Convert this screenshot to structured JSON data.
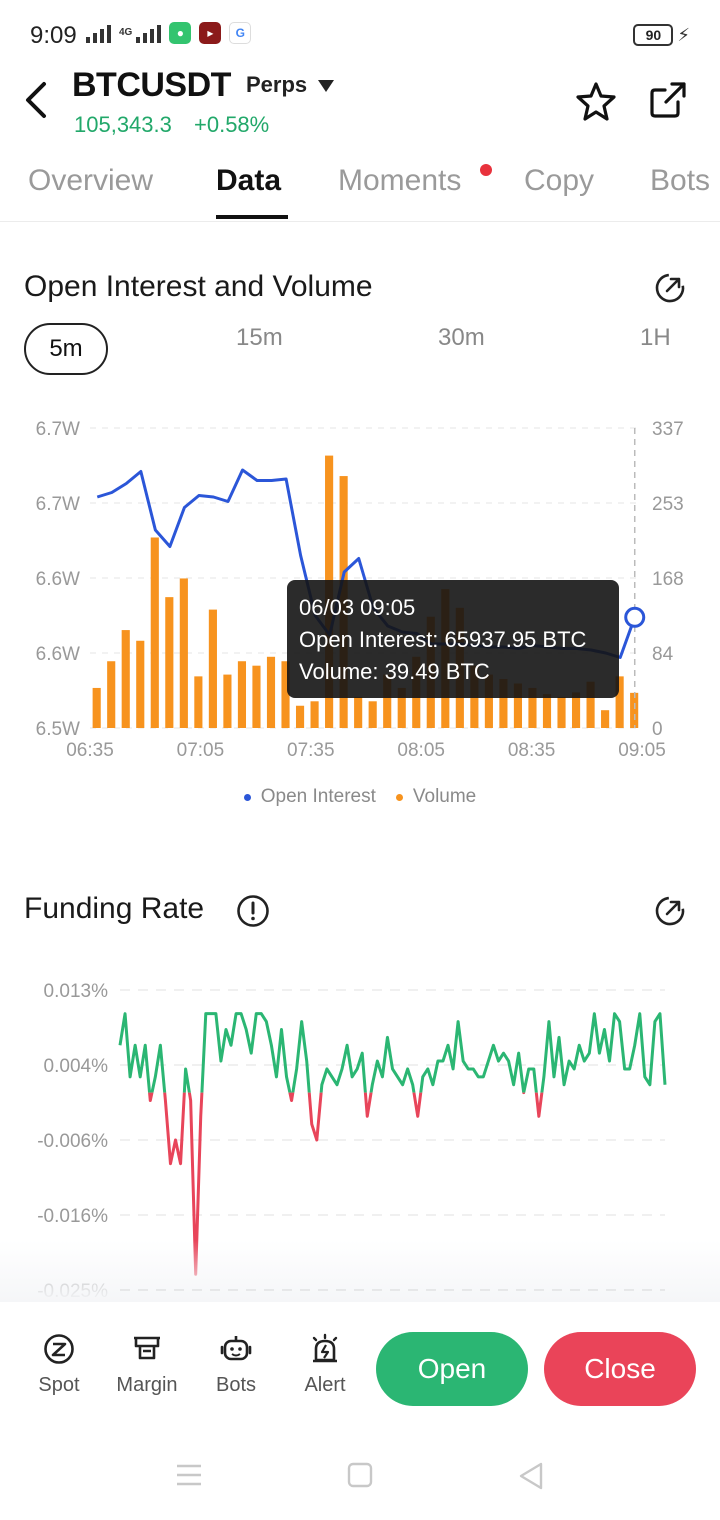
{
  "status_bar": {
    "time": "9:09",
    "network": "4G",
    "battery": "90"
  },
  "header": {
    "symbol": "BTCUSDT",
    "contract_type": "Perps",
    "price": "105,343.3",
    "change": "+0.58%"
  },
  "tabs": [
    {
      "label": "Overview",
      "active": false
    },
    {
      "label": "Data",
      "active": true
    },
    {
      "label": "Moments",
      "active": false,
      "notification": true
    },
    {
      "label": "Copy",
      "active": false
    },
    {
      "label": "Bots",
      "active": false
    }
  ],
  "open_interest_section": {
    "title": "Open Interest and Volume",
    "intervals": [
      "5m",
      "15m",
      "30m",
      "1H"
    ],
    "selected_interval": "5m",
    "tooltip": {
      "time": "06/03 09:05",
      "open_interest": "Open Interest: 65937.95 BTC",
      "volume": "Volume: 39.49 BTC"
    },
    "legend": {
      "open_interest": "Open Interest",
      "volume": "Volume"
    }
  },
  "funding_section": {
    "title": "Funding Rate"
  },
  "chart_data": [
    {
      "type": "bar",
      "title": "Open Interest and Volume",
      "x_ticks": [
        "06:35",
        "07:05",
        "07:35",
        "08:05",
        "08:35",
        "09:05"
      ],
      "left_axis_ticks": [
        "6.7W",
        "6.7W",
        "6.6W",
        "6.6W",
        "6.5W"
      ],
      "right_axis_ticks": [
        "337",
        "253",
        "168",
        "84",
        "0"
      ],
      "volume_ylim": [
        0,
        337
      ],
      "oi_ylim": [
        65200,
        67200
      ],
      "series": [
        {
          "name": "Volume",
          "type": "bar",
          "axis": "right",
          "color": "#f7931e",
          "values": [
            45,
            75,
            110,
            98,
            214,
            147,
            168,
            58,
            133,
            60,
            75,
            70,
            80,
            75,
            25,
            30,
            306,
            283,
            35,
            30,
            60,
            45,
            80,
            125,
            156,
            135,
            70,
            60,
            55,
            50,
            45,
            38,
            35,
            40,
            52,
            20,
            58,
            39.49
          ]
        },
        {
          "name": "Open Interest",
          "type": "line",
          "axis": "left",
          "color": "#2b56d8",
          "values": [
            66740,
            66770,
            66830,
            66910,
            66520,
            66410,
            66670,
            66750,
            66740,
            66710,
            66920,
            66850,
            66850,
            66860,
            66350,
            65950,
            65820,
            66240,
            66330,
            66000,
            65880,
            65840,
            65830,
            65760,
            65760,
            65760,
            65750,
            65740,
            65740,
            65730,
            65750,
            65740,
            65730,
            65730,
            65720,
            65700,
            65670,
            65937.95
          ]
        }
      ]
    },
    {
      "type": "line",
      "title": "Funding Rate",
      "y_ticks": [
        "0.013%",
        "0.004%",
        "-0.006%",
        "-0.016%",
        "-0.025%"
      ],
      "ylim": [
        -0.025,
        0.013
      ],
      "series": [
        {
          "name": "Funding Rate",
          "positive_color": "#2bb673",
          "negative_color": "#e8455a",
          "values": [
            0.006,
            0.01,
            0.002,
            0.006,
            0.002,
            0.006,
            -0.001,
            0.002,
            0.006,
            -0.001,
            -0.009,
            -0.006,
            -0.009,
            0.003,
            -0.001,
            -0.023,
            -0.003,
            0.01,
            0.01,
            0.01,
            0.004,
            0.008,
            0.006,
            0.01,
            0.01,
            0.008,
            0.005,
            0.01,
            0.01,
            0.009,
            0.006,
            0.002,
            0.008,
            0.002,
            -0.001,
            0.003,
            0.009,
            0.004,
            -0.004,
            -0.006,
            0.001,
            0.003,
            0.002,
            0.001,
            0.003,
            0.006,
            0.002,
            0.003,
            0.005,
            -0.003,
            0.001,
            0.004,
            0.002,
            0.007,
            0.003,
            0.002,
            0.001,
            0.003,
            0.001,
            -0.003,
            0.002,
            0.003,
            0.001,
            0.004,
            0.004,
            0.006,
            0.003,
            0.009,
            0.004,
            0.003,
            0.003,
            0.002,
            0.002,
            0.004,
            0.006,
            0.004,
            0.005,
            0.004,
            0.001,
            0.005,
            0.0,
            0.003,
            0.003,
            -0.003,
            0.002,
            0.009,
            0.002,
            0.007,
            0.001,
            0.004,
            0.003,
            0.006,
            0.004,
            0.005,
            0.01,
            0.005,
            0.008,
            0.004,
            0.01,
            0.009,
            0.003,
            0.003,
            0.006,
            0.01,
            0.002,
            0.001,
            0.009,
            0.01,
            0.001
          ]
        }
      ]
    }
  ],
  "bottom_bar": {
    "spot": "Spot",
    "margin": "Margin",
    "bots": "Bots",
    "alert": "Alert",
    "open": "Open",
    "close": "Close"
  }
}
